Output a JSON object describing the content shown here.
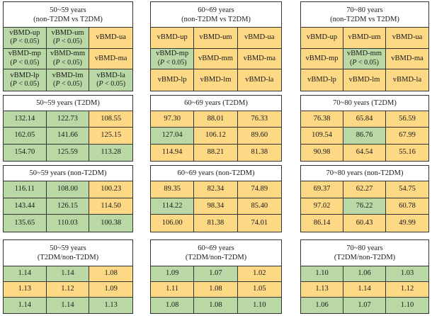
{
  "colors": {
    "green": "#b9d8a6",
    "yellow": "#fdd885"
  },
  "panels": [
    {
      "title1": "50~59 years",
      "title2": "(non-T2DM vs T2DM)",
      "cells": [
        {
          "t": "vBMD-up",
          "s": "(P < 0.05)",
          "c": "g"
        },
        {
          "t": "vBMD-um",
          "s": "(P < 0.05)",
          "c": "g"
        },
        {
          "t": "vBMD-ua",
          "s": "",
          "c": "y"
        },
        {
          "t": "vBMD-mp",
          "s": "(P < 0.05)",
          "c": "g"
        },
        {
          "t": "vBMD-mm",
          "s": "(P < 0.05)",
          "c": "g"
        },
        {
          "t": "vBMD-ma",
          "s": "",
          "c": "y"
        },
        {
          "t": "vBMD-lp",
          "s": "(P < 0.05)",
          "c": "g"
        },
        {
          "t": "vBMD-lm",
          "s": "(P < 0.05)",
          "c": "g"
        },
        {
          "t": "vBMD-la",
          "s": "(P < 0.05)",
          "c": "g"
        }
      ]
    },
    {
      "title1": "60~69 years",
      "title2": "(non-T2DM vs T2DM)",
      "cells": [
        {
          "t": "vBMD-up",
          "s": "",
          "c": "y"
        },
        {
          "t": "vBMD-um",
          "s": "",
          "c": "y"
        },
        {
          "t": "vBMD-ua",
          "s": "",
          "c": "y"
        },
        {
          "t": "vBMD-mp",
          "s": "(P < 0.05)",
          "c": "g"
        },
        {
          "t": "vBMD-mm",
          "s": "",
          "c": "y"
        },
        {
          "t": "vBMD-ma",
          "s": "",
          "c": "y"
        },
        {
          "t": "vBMD-lp",
          "s": "",
          "c": "y"
        },
        {
          "t": "vBMD-lm",
          "s": "",
          "c": "y"
        },
        {
          "t": "vBMD-la",
          "s": "",
          "c": "y"
        }
      ]
    },
    {
      "title1": "70~80 years",
      "title2": "(non-T2DM vs T2DM)",
      "cells": [
        {
          "t": "vBMD-up",
          "s": "",
          "c": "y"
        },
        {
          "t": "vBMD-um",
          "s": "",
          "c": "y"
        },
        {
          "t": "vBMD-ua",
          "s": "",
          "c": "y"
        },
        {
          "t": "vBMD-mp",
          "s": "",
          "c": "y"
        },
        {
          "t": "vBMD-mm",
          "s": "(P < 0.05)",
          "c": "g"
        },
        {
          "t": "vBMD-ma",
          "s": "",
          "c": "y"
        },
        {
          "t": "vBMD-lp",
          "s": "",
          "c": "y"
        },
        {
          "t": "vBMD-lm",
          "s": "",
          "c": "y"
        },
        {
          "t": "vBMD-la",
          "s": "",
          "c": "y"
        }
      ]
    },
    {
      "title1": "50~59 years (T2DM)",
      "title2": "",
      "cells": [
        {
          "t": "132.14",
          "c": "g"
        },
        {
          "t": "122.73",
          "c": "g"
        },
        {
          "t": "108.55",
          "c": "y"
        },
        {
          "t": "162.05",
          "c": "g"
        },
        {
          "t": "141.66",
          "c": "g"
        },
        {
          "t": "125.15",
          "c": "y"
        },
        {
          "t": "154.70",
          "c": "g"
        },
        {
          "t": "125.59",
          "c": "g"
        },
        {
          "t": "113.28",
          "c": "g"
        }
      ]
    },
    {
      "title1": "60~69 years (T2DM)",
      "title2": "",
      "cells": [
        {
          "t": "97.30",
          "c": "y"
        },
        {
          "t": "88.01",
          "c": "y"
        },
        {
          "t": "76.33",
          "c": "y"
        },
        {
          "t": "127.04",
          "c": "g"
        },
        {
          "t": "106.12",
          "c": "y"
        },
        {
          "t": "89.60",
          "c": "y"
        },
        {
          "t": "114.94",
          "c": "y"
        },
        {
          "t": "88.21",
          "c": "y"
        },
        {
          "t": "81.38",
          "c": "y"
        }
      ]
    },
    {
      "title1": "70~80 years (T2DM)",
      "title2": "",
      "cells": [
        {
          "t": "76.38",
          "c": "y"
        },
        {
          "t": "65.84",
          "c": "y"
        },
        {
          "t": "56.59",
          "c": "y"
        },
        {
          "t": "109.54",
          "c": "y"
        },
        {
          "t": "86.76",
          "c": "g"
        },
        {
          "t": "67.99",
          "c": "y"
        },
        {
          "t": "90.98",
          "c": "y"
        },
        {
          "t": "64.54",
          "c": "y"
        },
        {
          "t": "55.16",
          "c": "y"
        }
      ]
    },
    {
      "title1": "50~59 years (non-T2DM)",
      "title2": "",
      "cells": [
        {
          "t": "116.11",
          "c": "g"
        },
        {
          "t": "108.00",
          "c": "g"
        },
        {
          "t": "100.23",
          "c": "y"
        },
        {
          "t": "143.44",
          "c": "g"
        },
        {
          "t": "126.15",
          "c": "g"
        },
        {
          "t": "114.50",
          "c": "y"
        },
        {
          "t": "135.65",
          "c": "g"
        },
        {
          "t": "110.03",
          "c": "g"
        },
        {
          "t": "100.38",
          "c": "g"
        }
      ]
    },
    {
      "title1": "60~69 years (non-T2DM)",
      "title2": "",
      "cells": [
        {
          "t": "89.35",
          "c": "y"
        },
        {
          "t": "82.34",
          "c": "y"
        },
        {
          "t": "74.89",
          "c": "y"
        },
        {
          "t": "114.22",
          "c": "g"
        },
        {
          "t": "98.34",
          "c": "y"
        },
        {
          "t": "85.40",
          "c": "y"
        },
        {
          "t": "106.00",
          "c": "y"
        },
        {
          "t": "81.38",
          "c": "y"
        },
        {
          "t": "74.01",
          "c": "y"
        }
      ]
    },
    {
      "title1": "70~80 years (non-T2DM)",
      "title2": "",
      "cells": [
        {
          "t": "69.37",
          "c": "y"
        },
        {
          "t": "62.27",
          "c": "y"
        },
        {
          "t": "54.75",
          "c": "y"
        },
        {
          "t": "97.02",
          "c": "y"
        },
        {
          "t": "76.22",
          "c": "g"
        },
        {
          "t": "60.78",
          "c": "y"
        },
        {
          "t": "86.14",
          "c": "y"
        },
        {
          "t": "60.43",
          "c": "y"
        },
        {
          "t": "49.99",
          "c": "y"
        }
      ]
    },
    {
      "title1": "50~59 years",
      "title2": "(T2DM/non-T2DM)",
      "cells": [
        {
          "t": "1.14",
          "c": "g"
        },
        {
          "t": "1.14",
          "c": "g"
        },
        {
          "t": "1.08",
          "c": "y"
        },
        {
          "t": "1.13",
          "c": "y"
        },
        {
          "t": "1.12",
          "c": "y"
        },
        {
          "t": "1.09",
          "c": "y"
        },
        {
          "t": "1.14",
          "c": "g"
        },
        {
          "t": "1.14",
          "c": "g"
        },
        {
          "t": "1.13",
          "c": "g"
        }
      ]
    },
    {
      "title1": "60~69 years",
      "title2": "(T2DM/non-T2DM)",
      "cells": [
        {
          "t": "1.09",
          "c": "g"
        },
        {
          "t": "1.07",
          "c": "g"
        },
        {
          "t": "1.02",
          "c": "y"
        },
        {
          "t": "1.11",
          "c": "y"
        },
        {
          "t": "1.08",
          "c": "y"
        },
        {
          "t": "1.05",
          "c": "y"
        },
        {
          "t": "1.08",
          "c": "g"
        },
        {
          "t": "1.08",
          "c": "g"
        },
        {
          "t": "1.10",
          "c": "g"
        }
      ]
    },
    {
      "title1": "70~80 years",
      "title2": "(T2DM/non-T2DM)",
      "cells": [
        {
          "t": "1.10",
          "c": "g"
        },
        {
          "t": "1.06",
          "c": "g"
        },
        {
          "t": "1.03",
          "c": "g"
        },
        {
          "t": "1.13",
          "c": "y"
        },
        {
          "t": "1.14",
          "c": "y"
        },
        {
          "t": "1.12",
          "c": "y"
        },
        {
          "t": "1.06",
          "c": "g"
        },
        {
          "t": "1.07",
          "c": "g"
        },
        {
          "t": "1.10",
          "c": "g"
        }
      ]
    }
  ]
}
